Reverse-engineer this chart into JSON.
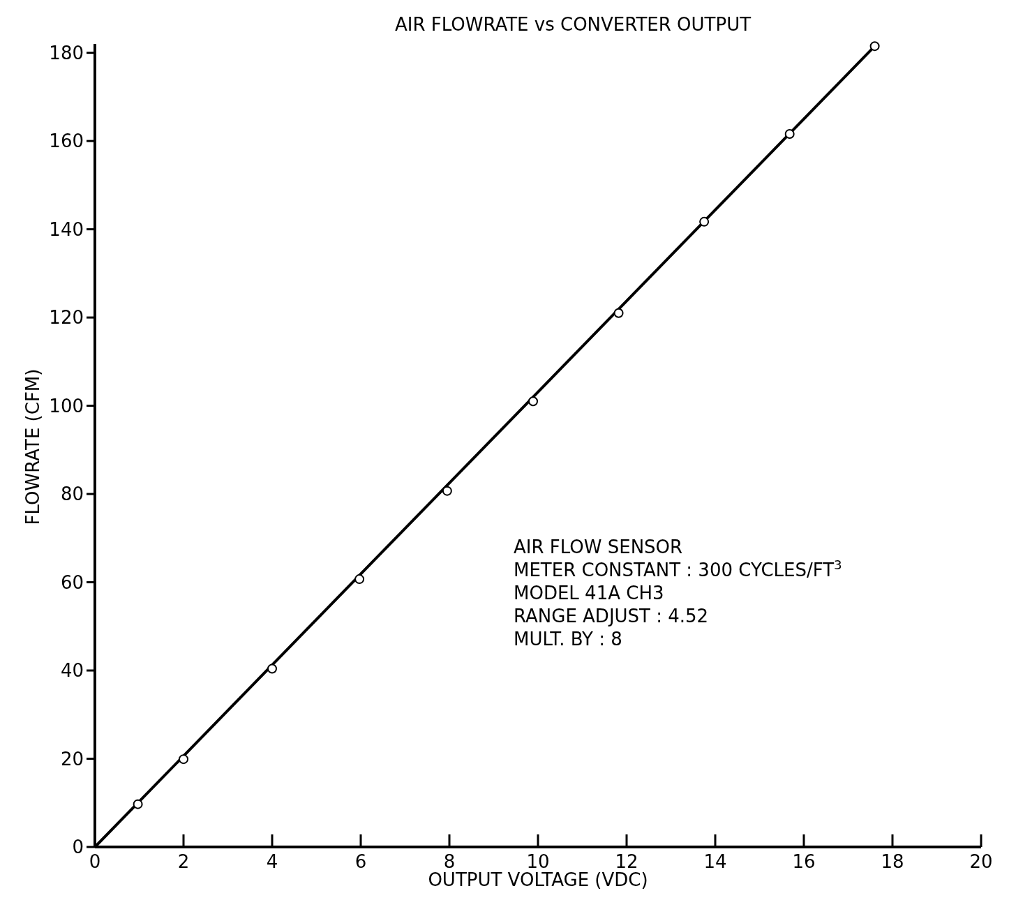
{
  "chart_data": {
    "type": "scatter",
    "title": "AIR FLOWRATE vs CONVERTER OUTPUT",
    "xlabel": "OUTPUT  VOLTAGE (VDC)",
    "ylabel": "FLOWRATE (CFM)",
    "xlim": [
      0,
      20
    ],
    "ylim": [
      0,
      182
    ],
    "xticks": [
      0,
      2,
      4,
      6,
      8,
      10,
      12,
      14,
      16,
      18,
      20
    ],
    "yticks": [
      0,
      20,
      40,
      60,
      80,
      100,
      120,
      140,
      160,
      180
    ],
    "grid": false,
    "series": [
      {
        "type": "line",
        "color": "#000000",
        "marker": "none",
        "line_style": "solid",
        "x": [
          0,
          17.6
        ],
        "values": [
          0,
          181.5
        ]
      },
      {
        "color": "#000000",
        "marker": "circle",
        "x": [
          0.97,
          2.0,
          4.0,
          5.97,
          7.95,
          9.89,
          11.82,
          13.75,
          15.68,
          17.6
        ],
        "values": [
          9.7,
          19.9,
          40.4,
          60.7,
          80.7,
          101,
          121,
          141.7,
          161.6,
          181.5
        ]
      }
    ],
    "annotations": [
      {
        "text": "AIR FLOW SENSOR"
      },
      {
        "text": "METER CONSTANT : 300 CYCLES/FT$^{3}$"
      },
      {
        "text": "MODEL 41A CH3"
      },
      {
        "text": "RANGE ADJUST : 4.52"
      },
      {
        "text": "MULT. BY : 8"
      }
    ]
  }
}
